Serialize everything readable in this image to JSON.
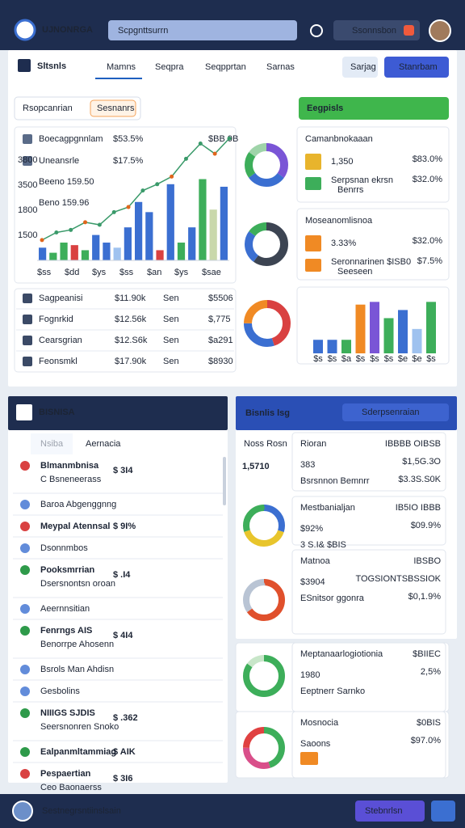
{
  "header": {
    "brand": "UЈNONRGA",
    "search": "Scpgnttsurrn",
    "search2": "Ssonnsbon"
  },
  "toolbar": {
    "title": "Sltsnls",
    "tabs": [
      "Mamns",
      "Seqpra",
      "Seqpprtan",
      "Sarnas"
    ],
    "action1": "Sarjag",
    "action2": "Stanrbam"
  },
  "filter": {
    "label": "Rsopcanrian",
    "chip": "Sesnanrs",
    "highlight": "Eegpisls"
  },
  "trend": {
    "rows": [
      {
        "label": "Boecagpgnnlam",
        "value": "$53.5%"
      },
      {
        "label": "Uneansrle",
        "value": "$17.5%"
      }
    ],
    "notes": [
      "Beeno 159.50",
      "Beno 159.96"
    ],
    "side_labels": [
      "3800",
      "3500",
      "1800",
      "1500"
    ],
    "corner": "$BB 9B",
    "x_labels": [
      "$ss",
      "$dd",
      "$ys",
      "$ss",
      "$an",
      "$ys",
      "$sae"
    ],
    "ylim": [
      0,
      100
    ],
    "bars": [
      {
        "value": 10,
        "color": "#3b6fd1"
      },
      {
        "value": 6,
        "color": "#3dae5a"
      },
      {
        "value": 14,
        "color": "#3dae5a"
      },
      {
        "value": 12,
        "color": "#d94141"
      },
      {
        "value": 8,
        "color": "#3dae5a"
      },
      {
        "value": 20,
        "color": "#3b6fd1"
      },
      {
        "value": 14,
        "color": "#3b6fd1"
      },
      {
        "value": 10,
        "color": "#9fc2ef"
      },
      {
        "value": 26,
        "color": "#3b6fd1"
      },
      {
        "value": 46,
        "color": "#3b6fd1"
      },
      {
        "value": 38,
        "color": "#3b6fd1"
      },
      {
        "value": 8,
        "color": "#d94141"
      },
      {
        "value": 60,
        "color": "#3b6fd1"
      },
      {
        "value": 14,
        "color": "#3dae5a"
      },
      {
        "value": 26,
        "color": "#3b6fd1"
      },
      {
        "value": 64,
        "color": "#3dae5a"
      },
      {
        "value": 40,
        "color": "#c9d8ab"
      },
      {
        "value": 58,
        "color": "#3b6fd1"
      }
    ],
    "line": [
      16,
      22,
      24,
      30,
      28,
      38,
      42,
      55,
      60,
      66,
      80,
      92,
      84,
      96
    ]
  },
  "table": {
    "rows": [
      [
        "Sagpeanisi",
        "$11.90k",
        "Sen",
        "$5506"
      ],
      [
        "Fognrkid",
        "$12.56k",
        "Sen",
        "$,775"
      ],
      [
        "Cearsgrian",
        "$12.S6k",
        "Sen",
        "$a291"
      ],
      [
        "Feonsmkl",
        "$17.90k",
        "Sen",
        "$8930"
      ]
    ]
  },
  "donuts": [
    {
      "segments": [
        {
          "value": 35,
          "color": "#7a55d6"
        },
        {
          "value": 30,
          "color": "#3b6fd1"
        },
        {
          "value": 20,
          "color": "#3dae5a"
        },
        {
          "value": 15,
          "color": "#9fd4a9"
        }
      ]
    },
    {
      "segments": [
        {
          "value": 60,
          "color": "#3c4452"
        },
        {
          "value": 25,
          "color": "#3b6fd1"
        },
        {
          "value": 15,
          "color": "#3dae5a"
        }
      ]
    },
    {
      "segments": [
        {
          "value": 45,
          "color": "#d94141"
        },
        {
          "value": 30,
          "color": "#3b6fd1"
        },
        {
          "value": 25,
          "color": "#f08a24"
        }
      ]
    }
  ],
  "cards": [
    {
      "title": "Camanbnokaaan",
      "value": "1,350",
      "sub": "Serpsnan ekrsn",
      "sub2": "Benrrs",
      "right": [
        "$83.0%",
        "$32.0%"
      ]
    },
    {
      "title": "Moseanomlisnoa",
      "value": "3.33%",
      "sub": "Seronnarinen $ISB0",
      "sub2": "Seeseen",
      "right": [
        "$32.0%",
        "$7.5%"
      ]
    }
  ],
  "mini_chart": {
    "ylim": [
      0,
      100
    ],
    "x_labels": [
      "$s",
      "$s",
      "$a",
      "$s",
      "$s",
      "$s",
      "$e",
      "$e",
      "$s"
    ],
    "bars": [
      {
        "value": 25,
        "color": "#3b6fd1"
      },
      {
        "value": 25,
        "color": "#3b6fd1"
      },
      {
        "value": 25,
        "color": "#3dae5a"
      },
      {
        "value": 90,
        "color": "#f08a24"
      },
      {
        "value": 95,
        "color": "#7a55d6"
      },
      {
        "value": 65,
        "color": "#3dae5a"
      },
      {
        "value": 80,
        "color": "#3b6fd1"
      },
      {
        "value": 45,
        "color": "#9fc2ef"
      },
      {
        "value": 95,
        "color": "#3dae5a"
      }
    ]
  },
  "list": {
    "title": "BISNISA",
    "tabs": [
      "Nsiba",
      "Aernacia"
    ],
    "items": [
      {
        "label": "Blmanmbnisa",
        "sub": "C Bsneneerass",
        "value": "$ 3I4",
        "color": "#d94141"
      },
      {
        "label": "Baroa Abgenggnng"
      },
      {
        "label": "Meypal Atennsal",
        "value": "$ 9I%",
        "color": "#d94141"
      },
      {
        "label": "Dsonnmbos"
      },
      {
        "label": "Pooksmrrian",
        "sub": "Dsersnontsn oroan",
        "value": "$ .I4",
        "color": "#2e9a4a"
      },
      {
        "label": "Aeernnsitian"
      },
      {
        "label": "Fenrngs AIS",
        "sub": "Benorrpe Ahosenn",
        "value": "$ 4I4",
        "color": "#2e9a4a"
      },
      {
        "label": "Bsrols Man Ahdisn"
      },
      {
        "label": "Gesbolins"
      },
      {
        "label": "NIIIGS SJDIS",
        "sub": "Seersnonren Snoko",
        "value": "$ .362",
        "color": "#2e9a4a"
      },
      {
        "label": "Ealpanmltammiag",
        "value": "$ AIK",
        "color": "#2e9a4a"
      },
      {
        "label": "Pespaertian",
        "sub": "Ceo Baonaerss",
        "value": "$ 3I6",
        "color": "#d94141"
      }
    ]
  },
  "stats": {
    "title": "Bisnlis lsg",
    "button": "Sderpsenraian",
    "cards": [
      {
        "title": "Rioran",
        "value": "383",
        "sub": "Bsrsnnon Bemnrr",
        "right": [
          "IBBBB OIBSB",
          "$1,5G.3O",
          "$3.3S.S0K"
        ]
      },
      {
        "title": "Mestbanialjan",
        "value": "$92%",
        "sub": "3 S.I& $BIS",
        "right": [
          "IB5IO IBBB",
          "$09.9%"
        ]
      },
      {
        "title": "Matnoa",
        "value": "$3904",
        "sub": "ESnitsor ggonra",
        "right": [
          "IBSBO",
          "TOGSIONTSBSSIOK",
          "$0,1.9%"
        ]
      },
      {
        "title": "Meptanaarlogiotionia",
        "value": "1980",
        "sub": "Eeptnerr Sarnko",
        "right": [
          "$BIIEC",
          "2,5%"
        ]
      },
      {
        "title": "Mosnocia",
        "value": "Saoons",
        "sub": "",
        "right": [
          "$0BIS",
          "$97.0%"
        ]
      }
    ],
    "big_label": "Noss Rosn",
    "big_value": "1,5710",
    "donuts": [
      {
        "segments": [
          {
            "value": 30,
            "color": "#3b6fd1"
          },
          {
            "value": 40,
            "color": "#e8c52c"
          },
          {
            "value": 30,
            "color": "#3dae5a"
          }
        ]
      },
      {
        "segments": [
          {
            "value": 65,
            "color": "#e0502c"
          },
          {
            "value": 35,
            "color": "#b9c4d4"
          }
        ]
      },
      {
        "segments": [
          {
            "value": 85,
            "color": "#3dae5a"
          },
          {
            "value": 15,
            "color": "#c8e6c9"
          }
        ]
      },
      {
        "segments": [
          {
            "value": 45,
            "color": "#3dae5a"
          },
          {
            "value": 30,
            "color": "#d94f8a"
          },
          {
            "value": 25,
            "color": "#e04141"
          }
        ]
      }
    ]
  },
  "footer": {
    "text": "Sestnegrsntiinslsain",
    "button": "Stebnrlsn"
  }
}
